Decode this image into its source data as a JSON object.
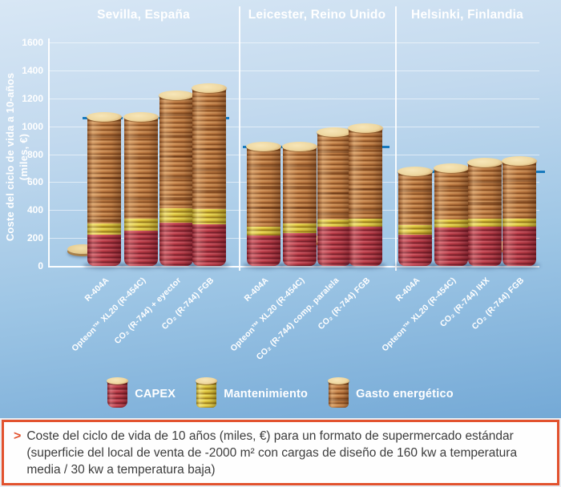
{
  "chart_data": {
    "type": "bar",
    "stacked": true,
    "title": "",
    "ylabel_line1": "Coste del ciclo de vida a 10-años",
    "ylabel_line2": "(miles, €)",
    "ylim": [
      0,
      1600
    ],
    "yticks": [
      0,
      200,
      400,
      600,
      800,
      1000,
      1200,
      1400,
      1600
    ],
    "grid": true,
    "series_order": [
      "capex",
      "mantenimiento",
      "gasto_energetico"
    ],
    "groups": [
      {
        "city": "Sevilla, España",
        "reference_line": 1060,
        "bars": [
          {
            "label": "R-404A",
            "capex": 225,
            "mantenimiento": 80,
            "gasto_energetico": 760,
            "total": 1065
          },
          {
            "label": "Opteon™ XL20 (R-454C)",
            "capex": 255,
            "mantenimiento": 85,
            "gasto_energetico": 725,
            "total": 1065
          },
          {
            "label": "CO₂ (R-744) + eyector",
            "capex": 310,
            "mantenimiento": 105,
            "gasto_energetico": 805,
            "total": 1220
          },
          {
            "label": "CO₂ (R-744) FGB",
            "capex": 300,
            "mantenimiento": 105,
            "gasto_energetico": 870,
            "total": 1275
          }
        ]
      },
      {
        "city": "Leicester, Reino Unido",
        "reference_line": 855,
        "bars": [
          {
            "label": "R-404A",
            "capex": 220,
            "mantenimiento": 60,
            "gasto_energetico": 575,
            "total": 855
          },
          {
            "label": "Opteon™ XL20 (R-454C)",
            "capex": 235,
            "mantenimiento": 70,
            "gasto_energetico": 550,
            "total": 855
          },
          {
            "label": "CO₂ (R-744) comp. paralela",
            "capex": 280,
            "mantenimiento": 55,
            "gasto_energetico": 625,
            "total": 960
          },
          {
            "label": "CO₂ (R-744) FGB",
            "capex": 280,
            "mantenimiento": 60,
            "gasto_energetico": 645,
            "total": 985
          }
        ]
      },
      {
        "city": "Helsinki, Finlandia",
        "reference_line": 675,
        "bars": [
          {
            "label": "R-404A",
            "capex": 225,
            "mantenimiento": 65,
            "gasto_energetico": 385,
            "total": 675
          },
          {
            "label": "Opteon™ XL20 (R-454C)",
            "capex": 275,
            "mantenimiento": 55,
            "gasto_energetico": 370,
            "total": 700
          },
          {
            "label": "CO₂ (R-744) IHX",
            "capex": 280,
            "mantenimiento": 60,
            "gasto_energetico": 400,
            "total": 740
          },
          {
            "label": "CO₂ (R-744) FGB",
            "capex": 280,
            "mantenimiento": 60,
            "gasto_energetico": 410,
            "total": 750
          }
        ]
      }
    ],
    "legend": [
      {
        "label": "CAPEX",
        "series": "capex"
      },
      {
        "label": "Mantenimiento",
        "series": "mantenimiento"
      },
      {
        "label": "Gasto energético",
        "series": "gasto_energetico"
      }
    ],
    "legend_position": "bottom"
  },
  "caption": {
    "bullet": ">",
    "text": "Coste del ciclo de vida de 10 años (miles, €) para un formato de supermercado estándar (superficie del local de venta de -2000 m² con cargas de diseño de 160 kw a temperatura media / 30 kw a temperatura baja)"
  },
  "colors": {
    "reference_line": "#1879bd",
    "caption_border": "#e2522e",
    "capex": "#c23f4a",
    "mantenimiento": "#e3cd45",
    "gasto_energetico": "#c07c46",
    "coin_top": "#eed9a6",
    "text_on_chart": "#ffffff"
  }
}
